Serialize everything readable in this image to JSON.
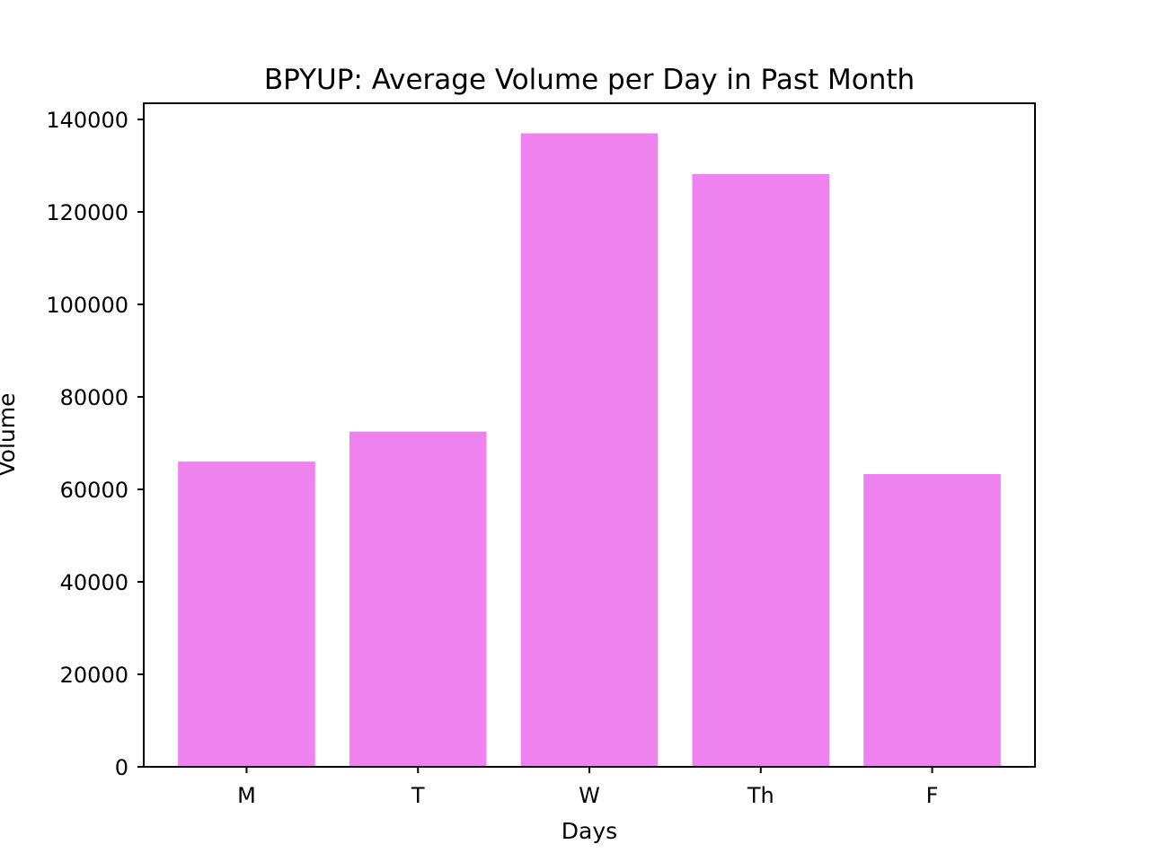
{
  "chart_data": {
    "type": "bar",
    "title": "BPYUP: Average Volume per Day in Past Month",
    "xlabel": "Days",
    "ylabel": "Volume",
    "categories": [
      "M",
      "T",
      "W",
      "Th",
      "F"
    ],
    "values": [
      66000,
      72500,
      137000,
      128200,
      63300
    ],
    "ylim": [
      0,
      143500
    ],
    "yticks": [
      0,
      20000,
      40000,
      60000,
      80000,
      100000,
      120000,
      140000
    ],
    "bar_color": "#ee82ee",
    "grid": false,
    "legend": "none"
  }
}
